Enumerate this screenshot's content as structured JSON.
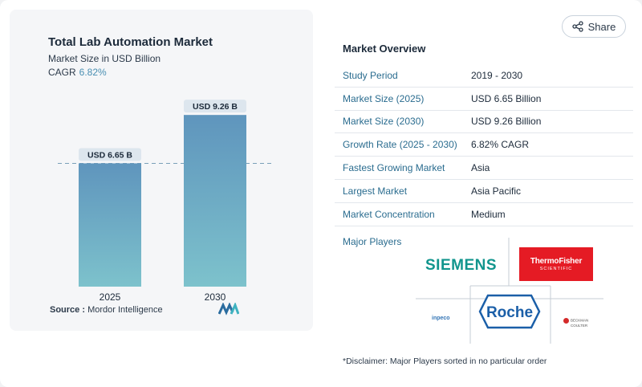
{
  "header": {
    "share_label": "Share"
  },
  "chart_data": {
    "type": "bar",
    "title": "Total Lab Automation Market",
    "subtitle": "Market Size in USD Billion",
    "cagr_label": "CAGR",
    "cagr_value": "6.82%",
    "categories": [
      "2025",
      "2030"
    ],
    "values": [
      6.65,
      9.26
    ],
    "data_labels": [
      "USD 6.65 B",
      "USD 9.26 B"
    ],
    "ylim": [
      0,
      11
    ],
    "colors": {
      "bar_top": "#5f95bd",
      "bar_bottom": "#7dc2cc",
      "dashed": "#7aa0b8",
      "label_bg": "#dde6ee"
    }
  },
  "source": {
    "label": "Source :",
    "value": "Mordor Intelligence"
  },
  "overview": {
    "title": "Market Overview",
    "rows": [
      {
        "key": "Study Period",
        "value": "2019 - 2030"
      },
      {
        "key": "Market Size (2025)",
        "value": "USD 6.65 Billion"
      },
      {
        "key": "Market Size (2030)",
        "value": "USD 9.26 Billion"
      },
      {
        "key": "Growth Rate (2025 - 2030)",
        "value": "6.82% CAGR"
      },
      {
        "key": "Fastest Growing Market",
        "value": "Asia"
      },
      {
        "key": "Largest Market",
        "value": "Asia Pacific"
      },
      {
        "key": "Market Concentration",
        "value": "Medium"
      }
    ],
    "players_label": "Major Players",
    "players": {
      "siemens": "SIEMENS",
      "thermo_line1": "ThermoFisher",
      "thermo_line2": "SCIENTIFIC",
      "roche": "Roche",
      "inpeco": "inpeco",
      "beckman_line1": "BECKMAN",
      "beckman_line2": "COULTER"
    }
  },
  "disclaimer": "*Disclaimer: Major Players sorted in no particular order"
}
